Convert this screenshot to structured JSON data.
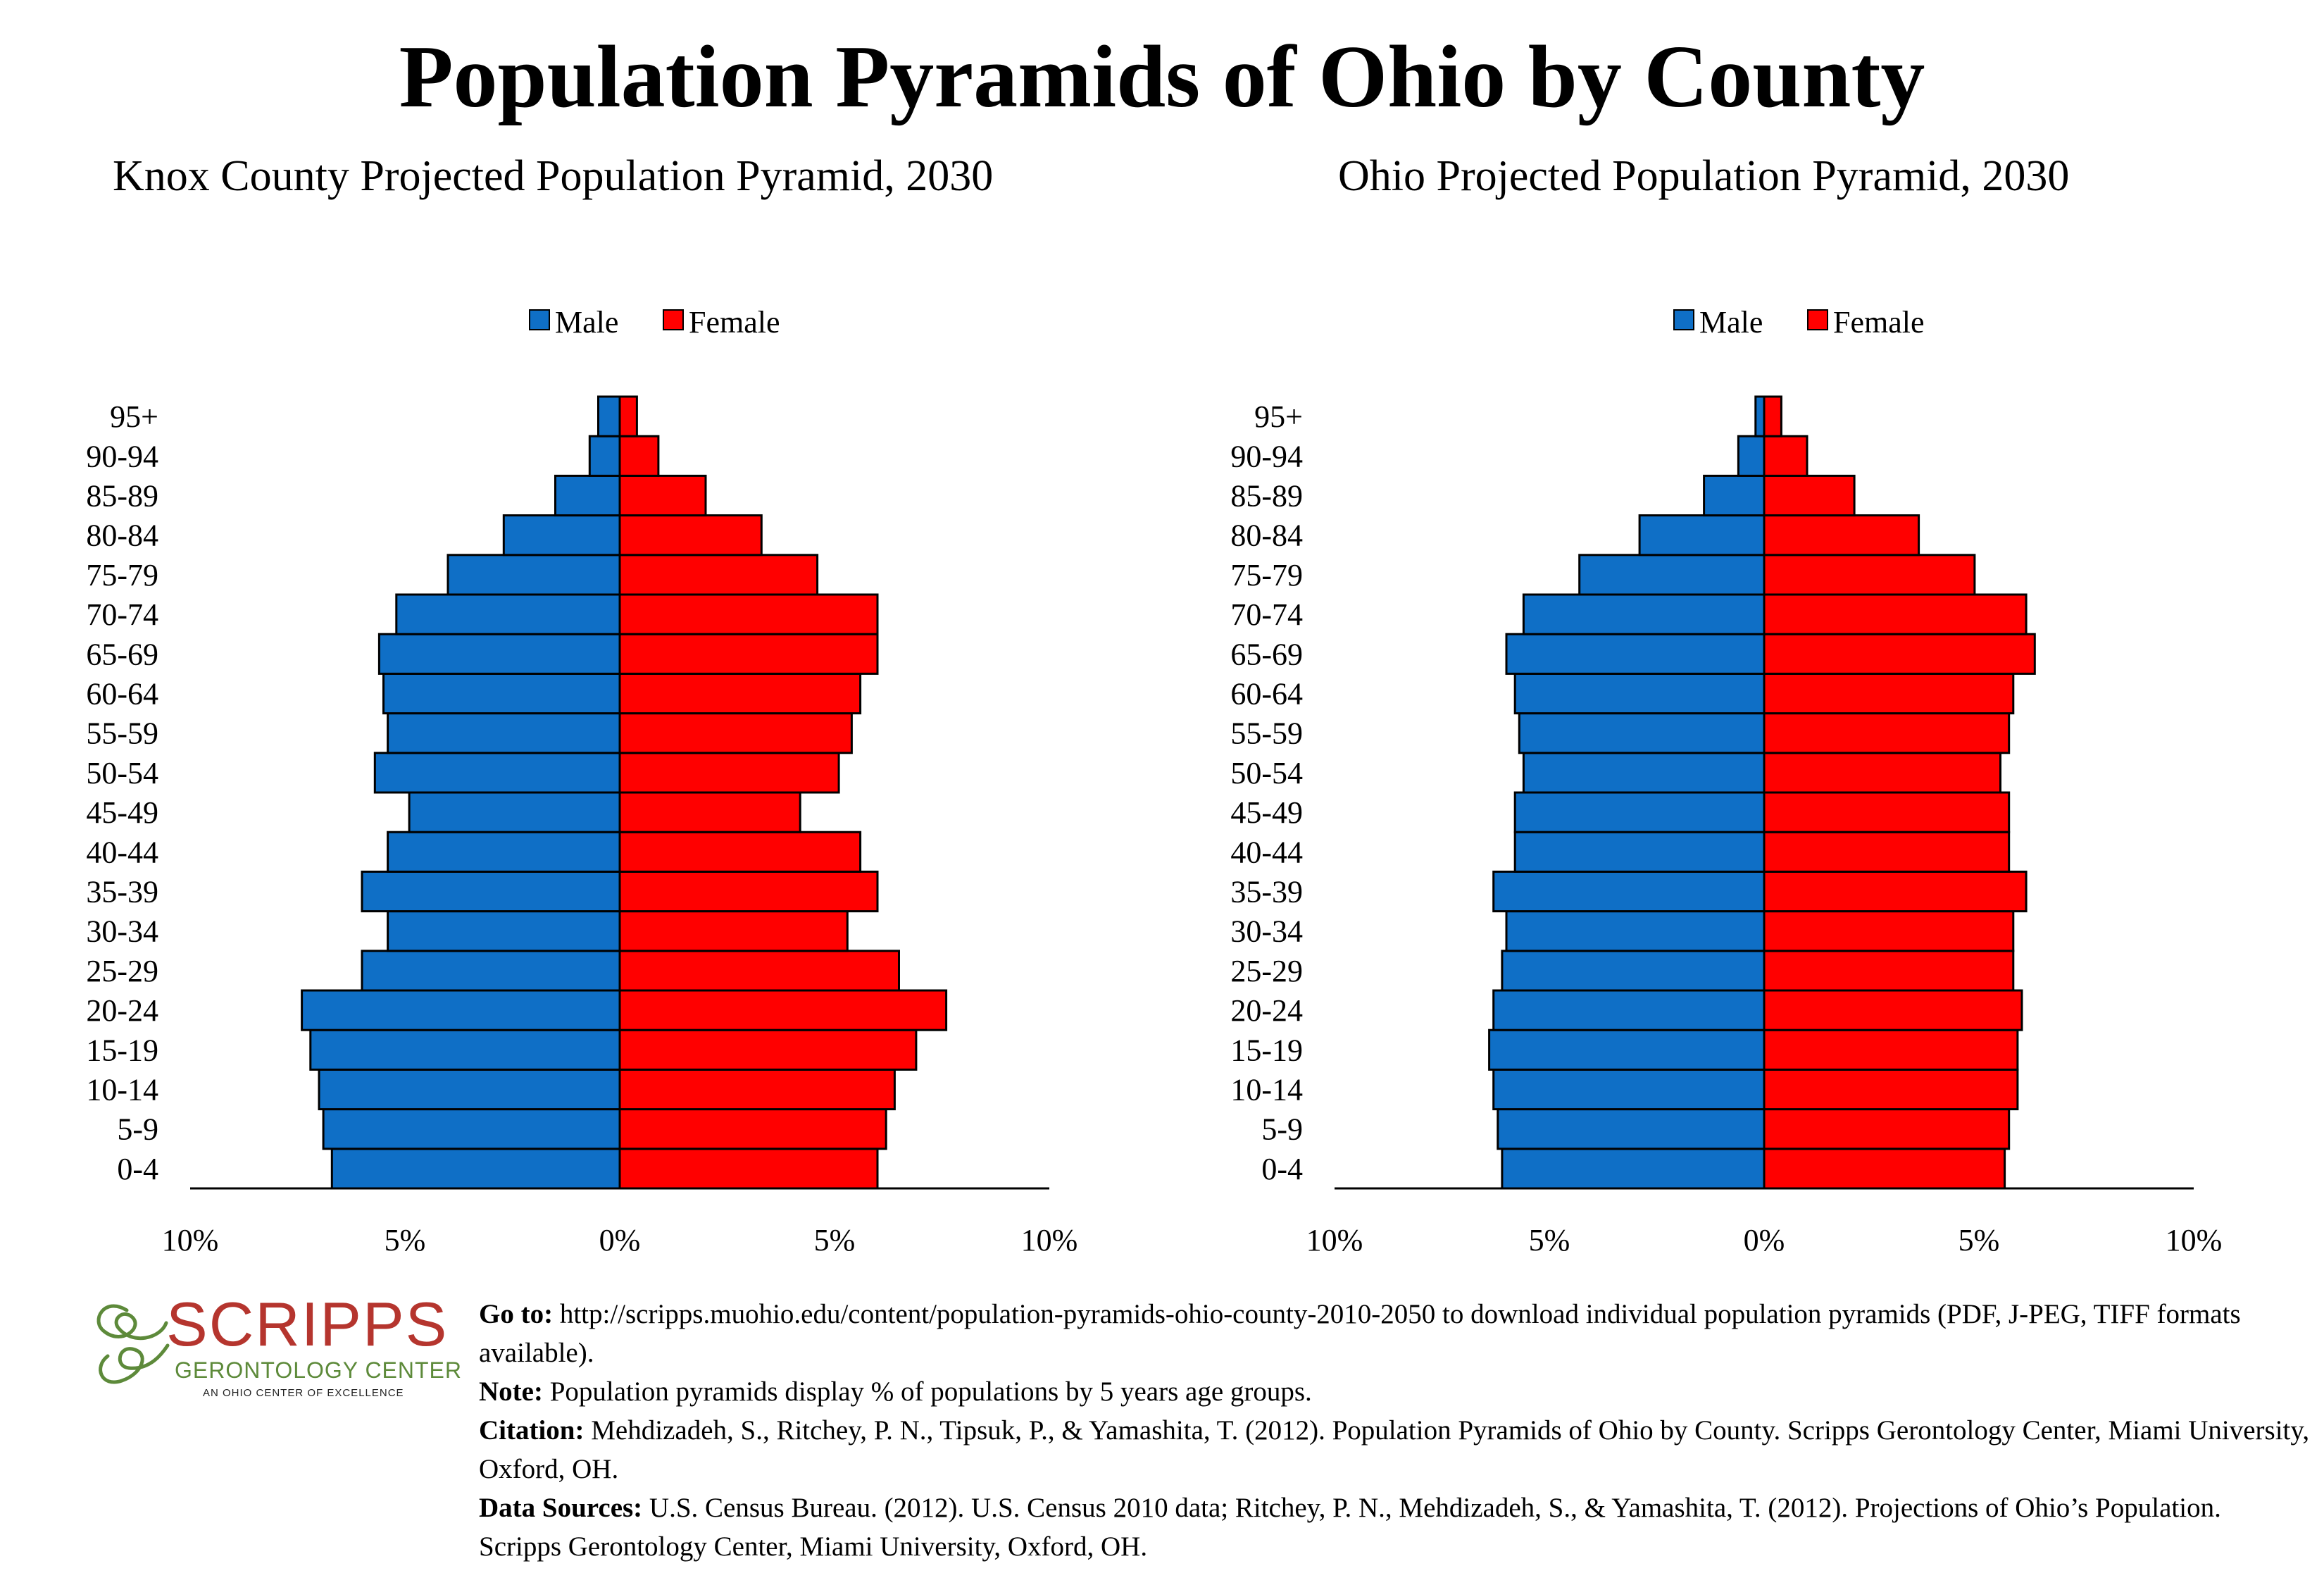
{
  "title": "Population Pyramids of Ohio by County",
  "legend": {
    "male": "Male",
    "female": "Female"
  },
  "colors": {
    "male": "#0f6fc6",
    "female": "#ff0000",
    "stroke": "#000000"
  },
  "chart_data": [
    {
      "type": "bar",
      "title": "Knox County Projected Population Pyramid, 2030",
      "categories": [
        "0-4",
        "5-9",
        "10-14",
        "15-19",
        "20-24",
        "25-29",
        "30-34",
        "35-39",
        "40-44",
        "45-49",
        "50-54",
        "55-59",
        "60-64",
        "65-69",
        "70-74",
        "75-79",
        "80-84",
        "85-89",
        "90-94",
        "95+"
      ],
      "series": [
        {
          "name": "Male",
          "values": [
            6.7,
            6.9,
            7.0,
            7.2,
            7.4,
            6.0,
            5.4,
            6.0,
            5.4,
            4.9,
            5.7,
            5.4,
            5.5,
            5.6,
            5.2,
            4.0,
            2.7,
            1.5,
            0.7,
            0.5
          ]
        },
        {
          "name": "Female",
          "values": [
            6.0,
            6.2,
            6.4,
            6.9,
            7.6,
            6.5,
            5.3,
            6.0,
            5.6,
            4.2,
            5.1,
            5.4,
            5.6,
            6.0,
            6.0,
            4.6,
            3.3,
            2.0,
            0.9,
            0.4
          ]
        }
      ],
      "xlim": [
        -10,
        10
      ],
      "ticks": [
        "10%",
        "5%",
        "0%",
        "5%",
        "10%"
      ]
    },
    {
      "type": "bar",
      "title": "Ohio Projected Population Pyramid, 2030",
      "categories": [
        "0-4",
        "5-9",
        "10-14",
        "15-19",
        "20-24",
        "25-29",
        "30-34",
        "35-39",
        "40-44",
        "45-49",
        "50-54",
        "55-59",
        "60-64",
        "65-69",
        "70-74",
        "75-79",
        "80-84",
        "85-89",
        "90-94",
        "95+"
      ],
      "series": [
        {
          "name": "Male",
          "values": [
            6.1,
            6.2,
            6.3,
            6.4,
            6.3,
            6.1,
            6.0,
            6.3,
            5.8,
            5.8,
            5.6,
            5.7,
            5.8,
            6.0,
            5.6,
            4.3,
            2.9,
            1.4,
            0.6,
            0.2
          ]
        },
        {
          "name": "Female",
          "values": [
            5.6,
            5.7,
            5.9,
            5.9,
            6.0,
            5.8,
            5.8,
            6.1,
            5.7,
            5.7,
            5.5,
            5.7,
            5.8,
            6.3,
            6.1,
            4.9,
            3.6,
            2.1,
            1.0,
            0.4
          ]
        }
      ],
      "xlim": [
        -10,
        10
      ],
      "ticks": [
        "10%",
        "5%",
        "0%",
        "5%",
        "10%"
      ]
    }
  ],
  "logo": {
    "name": "SCRIPPS",
    "line2": "GERONTOLOGY CENTER",
    "line3": "AN OHIO CENTER OF EXCELLENCE",
    "red": "#b5352e",
    "green": "#5d8a3a"
  },
  "footer": {
    "goto_label": "Go to:",
    "goto_text": " http://scripps.muohio.edu/content/population-pyramids-ohio-county-2010-2050 to download individual population pyramids (PDF, J-PEG, TIFF formats available).",
    "note_label": "Note:",
    "note_text": " Population pyramids display % of populations by 5 years age groups.",
    "citation_label": "Citation:",
    "citation_text": " Mehdizadeh, S., Ritchey, P. N., Tipsuk, P., & Yamashita, T. (2012). Population Pyramids of Ohio by County. Scripps Gerontology Center, Miami University, Oxford, OH.",
    "sources_label": "Data Sources:",
    "sources_text": " U.S. Census Bureau. (2012). U.S. Census 2010 data; Ritchey, P. N., Mehdizadeh, S., & Yamashita, T. (2012). Projections of Ohio’s Population. Scripps Gerontology Center, Miami University, Oxford, OH."
  }
}
